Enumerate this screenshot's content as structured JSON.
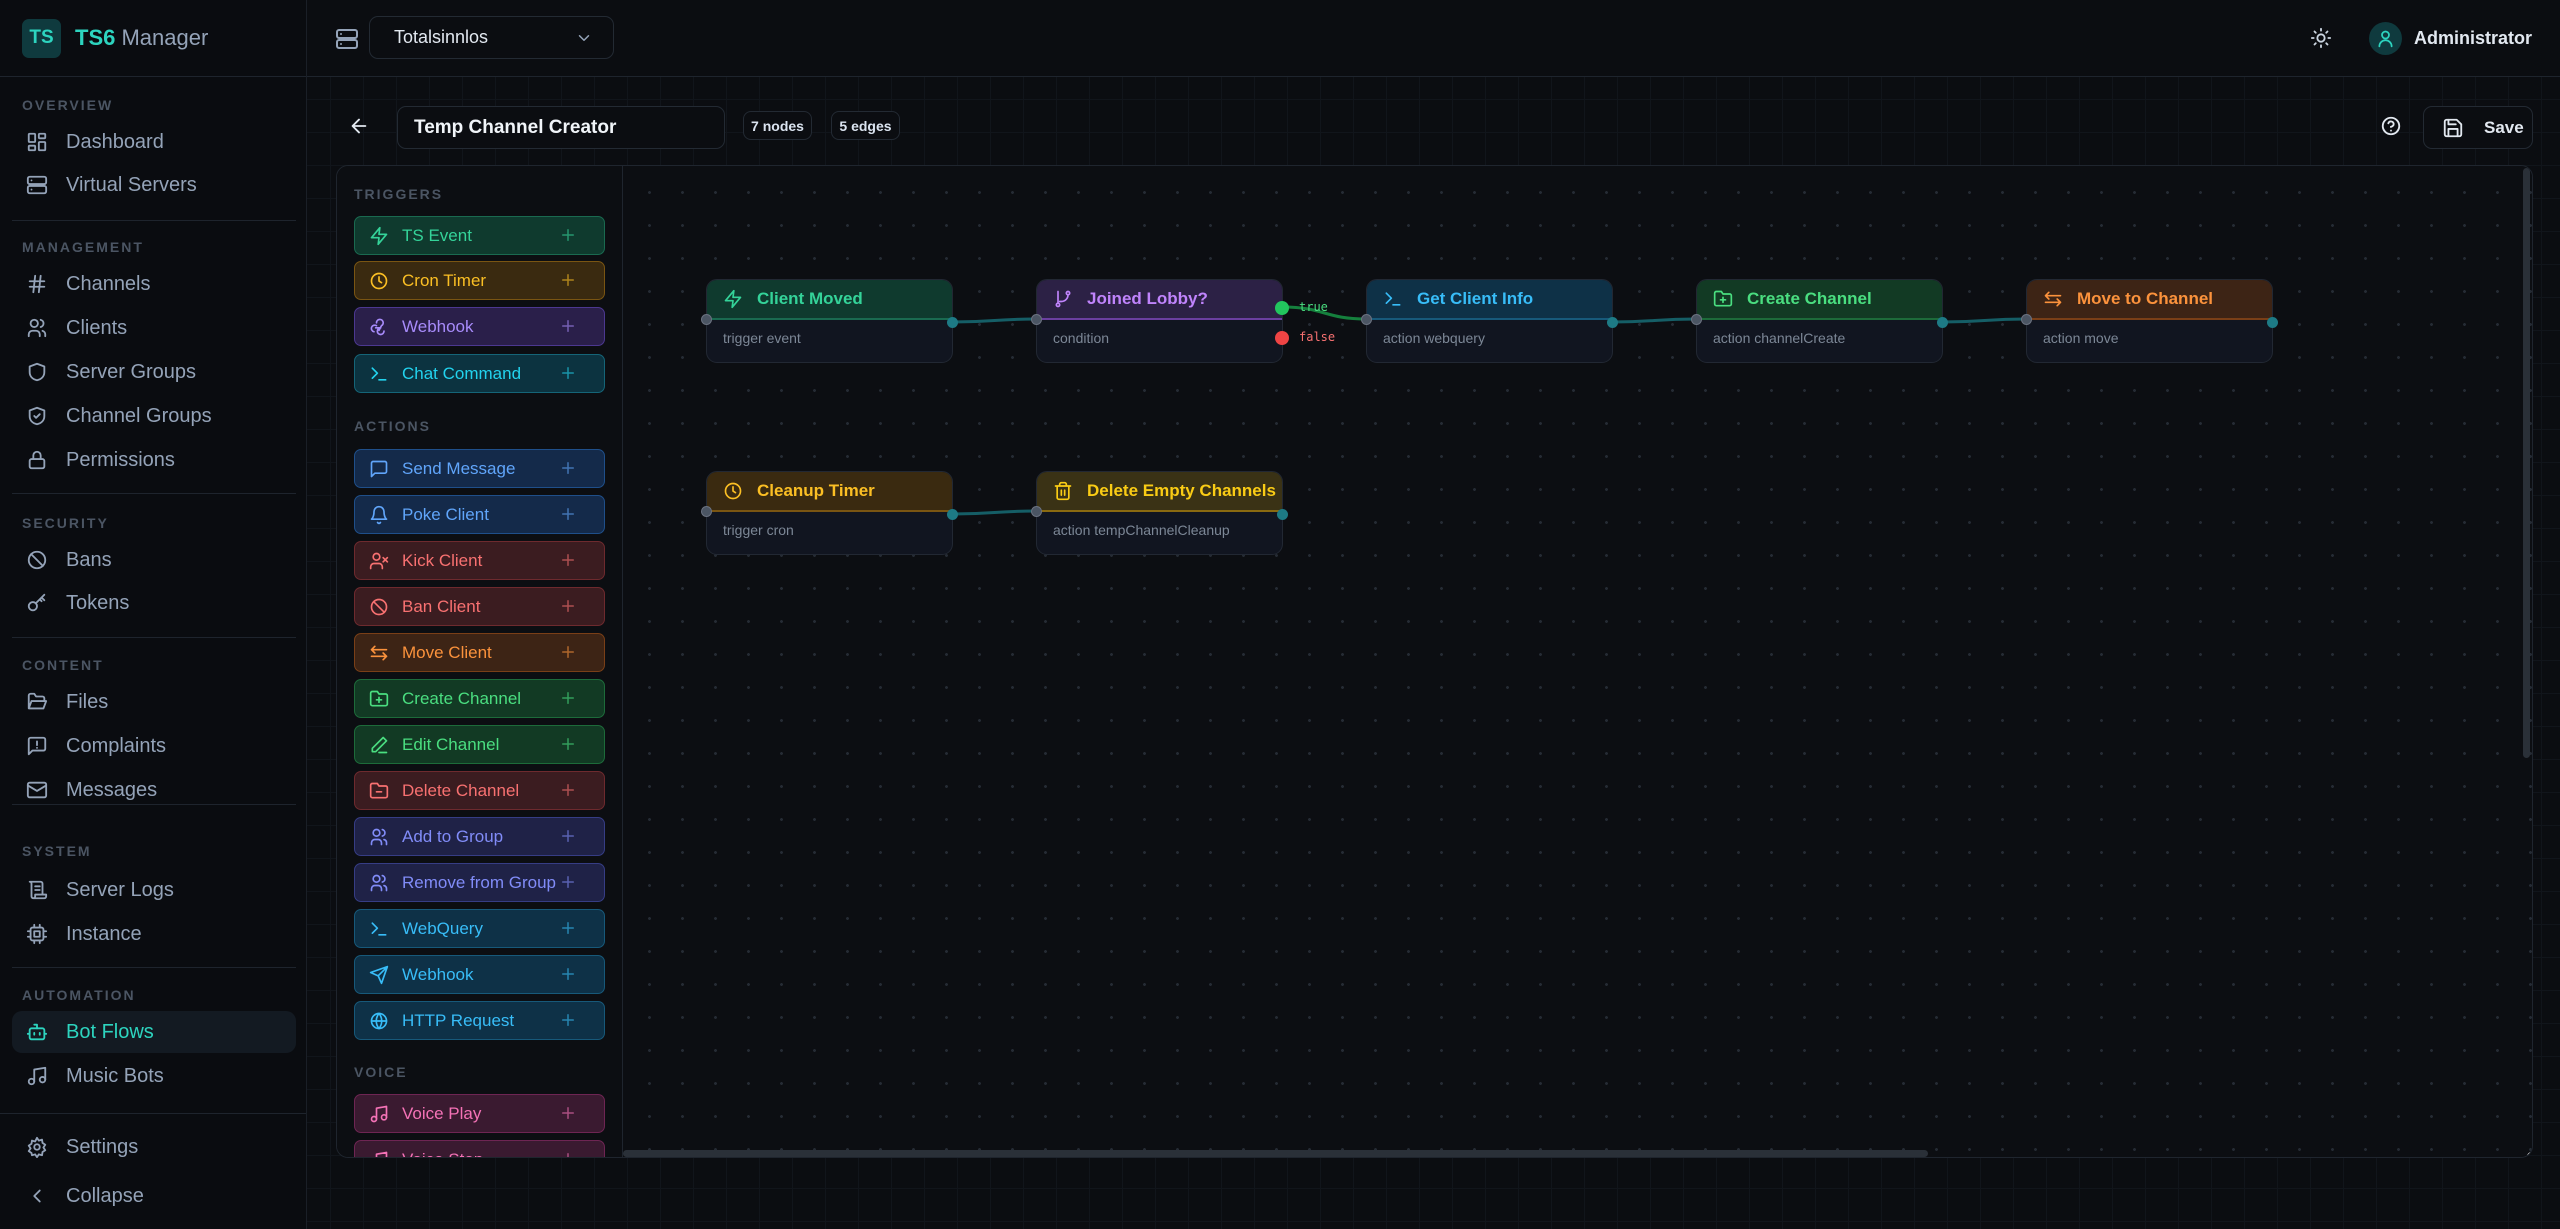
{
  "app": {
    "logo": "TS",
    "name_bold": "TS6",
    "name_rest": "Manager"
  },
  "sidebar": {
    "sections": [
      {
        "label": "OVERVIEW",
        "items": [
          {
            "label": "Dashboard",
            "icon": "dashboard-icon"
          },
          {
            "label": "Virtual Servers",
            "icon": "server-icon"
          }
        ]
      },
      {
        "label": "MANAGEMENT",
        "items": [
          {
            "label": "Channels",
            "icon": "hash-icon"
          },
          {
            "label": "Clients",
            "icon": "users-icon"
          },
          {
            "label": "Server Groups",
            "icon": "shield-icon"
          },
          {
            "label": "Channel Groups",
            "icon": "shield-check-icon"
          },
          {
            "label": "Permissions",
            "icon": "lock-icon"
          }
        ]
      },
      {
        "label": "SECURITY",
        "items": [
          {
            "label": "Bans",
            "icon": "ban-icon"
          },
          {
            "label": "Tokens",
            "icon": "key-icon"
          }
        ]
      },
      {
        "label": "CONTENT",
        "items": [
          {
            "label": "Files",
            "icon": "folder-open-icon"
          },
          {
            "label": "Complaints",
            "icon": "message-alert-icon"
          },
          {
            "label": "Messages",
            "icon": "mail-icon"
          }
        ]
      },
      {
        "label": "SYSTEM",
        "items": [
          {
            "label": "Server Logs",
            "icon": "scroll-icon"
          },
          {
            "label": "Instance",
            "icon": "cpu-icon"
          }
        ]
      },
      {
        "label": "AUTOMATION",
        "items": [
          {
            "label": "Bot Flows",
            "icon": "bot-icon",
            "active": true
          },
          {
            "label": "Music Bots",
            "icon": "music-icon"
          }
        ]
      }
    ],
    "footer": [
      {
        "label": "Settings",
        "icon": "settings-icon"
      },
      {
        "label": "Collapse",
        "icon": "chevron-left-icon"
      }
    ],
    "accent": "#2dd4bf"
  },
  "topbar": {
    "server": "Totalsinnlos",
    "user": "Administrator"
  },
  "toolbar": {
    "flow_name": "Temp Channel Creator",
    "nodes_badge": "7 nodes",
    "edges_badge": "5 edges",
    "save_label": "Save"
  },
  "palette": {
    "groups": [
      {
        "label": "TRIGGERS",
        "items": [
          {
            "label": "TS Event",
            "icon": "zap-icon",
            "color": "emerald"
          },
          {
            "label": "Cron Timer",
            "icon": "clock-icon",
            "color": "amber"
          },
          {
            "label": "Webhook",
            "icon": "webhook-icon",
            "color": "purple"
          },
          {
            "label": "Chat Command",
            "icon": "terminal-icon",
            "color": "cyan"
          }
        ]
      },
      {
        "label": "ACTIONS",
        "items": [
          {
            "label": "Send Message",
            "icon": "message-icon",
            "color": "blue"
          },
          {
            "label": "Poke Client",
            "icon": "bell-icon",
            "color": "blue"
          },
          {
            "label": "Kick Client",
            "icon": "user-x-icon",
            "color": "red"
          },
          {
            "label": "Ban Client",
            "icon": "ban-icon",
            "color": "red"
          },
          {
            "label": "Move Client",
            "icon": "arrows-icon",
            "color": "orange"
          },
          {
            "label": "Create Channel",
            "icon": "folder-plus-icon",
            "color": "green"
          },
          {
            "label": "Edit Channel",
            "icon": "pencil-icon",
            "color": "green"
          },
          {
            "label": "Delete Channel",
            "icon": "folder-minus-icon",
            "color": "red"
          },
          {
            "label": "Add to Group",
            "icon": "users-icon",
            "color": "indigo"
          },
          {
            "label": "Remove from Group",
            "icon": "users-icon",
            "color": "indigo"
          },
          {
            "label": "WebQuery",
            "icon": "terminal-icon",
            "color": "sky"
          },
          {
            "label": "Webhook",
            "icon": "send-icon",
            "color": "sky"
          },
          {
            "label": "HTTP Request",
            "icon": "globe-icon",
            "color": "sky"
          }
        ]
      },
      {
        "label": "VOICE",
        "items": [
          {
            "label": "Voice Play",
            "icon": "music-icon",
            "color": "pink"
          },
          {
            "label": "Voice Stop",
            "icon": "music-icon",
            "color": "pink"
          }
        ]
      }
    ]
  },
  "colors": {
    "emerald": {
      "fg": "#34d399",
      "bg": "#0f3a2e",
      "bd": "#1a6a50"
    },
    "amber": {
      "fg": "#fbbf24",
      "bg": "#3a2a10",
      "bd": "#7a5512"
    },
    "yellow": {
      "fg": "#facc15",
      "bg": "#3a3215",
      "bd": "#8a6a10"
    },
    "purple": {
      "fg": "#a78bfa",
      "bg": "#2a1f4a",
      "bd": "#4c3890"
    },
    "violet": {
      "fg": "#c084fc",
      "bg": "#2c2145",
      "bd": "#6b3fa0"
    },
    "cyan": {
      "fg": "#22d3ee",
      "bg": "#0c3340",
      "bd": "#156578"
    },
    "blue": {
      "fg": "#60a5fa",
      "bg": "#142a4a",
      "bd": "#1f4f8a"
    },
    "red": {
      "fg": "#f87171",
      "bg": "#3b1c20",
      "bd": "#6e2a2e"
    },
    "orange": {
      "fg": "#fb923c",
      "bg": "#3d2415",
      "bd": "#7a3f17"
    },
    "green": {
      "fg": "#4ade80",
      "bg": "#123a24",
      "bd": "#1d6b3a"
    },
    "indigo": {
      "fg": "#818cf8",
      "bg": "#1f2247",
      "bd": "#363d85"
    },
    "sky": {
      "fg": "#38bdf8",
      "bg": "#0e3147",
      "bd": "#17597a"
    },
    "pink": {
      "fg": "#f472b6",
      "bg": "#3a1a30",
      "bd": "#6e2553"
    }
  },
  "flow": {
    "nodes": [
      {
        "id": "n1",
        "title": "Client Moved",
        "subtitle": "trigger event",
        "icon": "zap-icon",
        "color": "emerald"
      },
      {
        "id": "n2",
        "title": "Joined Lobby?",
        "subtitle": "condition",
        "icon": "branch-icon",
        "color": "violet",
        "outputs": [
          "true",
          "false"
        ]
      },
      {
        "id": "n3",
        "title": "Get Client Info",
        "subtitle": "action webquery",
        "icon": "terminal-icon",
        "color": "sky"
      },
      {
        "id": "n4",
        "title": "Create Channel",
        "subtitle": "action channelCreate",
        "icon": "folder-plus-icon",
        "color": "green"
      },
      {
        "id": "n5",
        "title": "Move to Channel",
        "subtitle": "action move",
        "icon": "arrows-icon",
        "color": "orange"
      },
      {
        "id": "n6",
        "title": "Cleanup Timer",
        "subtitle": "trigger cron",
        "icon": "clock-icon",
        "color": "amber"
      },
      {
        "id": "n7",
        "title": "Delete Empty Channels",
        "subtitle": "action tempChannelCleanup",
        "icon": "trash-icon",
        "color": "yellow"
      }
    ],
    "edges": [
      {
        "from": "n1",
        "to": "n2"
      },
      {
        "from": "n2",
        "to": "n3",
        "handle": "true"
      },
      {
        "from": "n3",
        "to": "n4"
      },
      {
        "from": "n4",
        "to": "n5"
      },
      {
        "from": "n6",
        "to": "n7"
      }
    ],
    "edge_color": "#155e66",
    "true_edge_color": "#15803d"
  }
}
